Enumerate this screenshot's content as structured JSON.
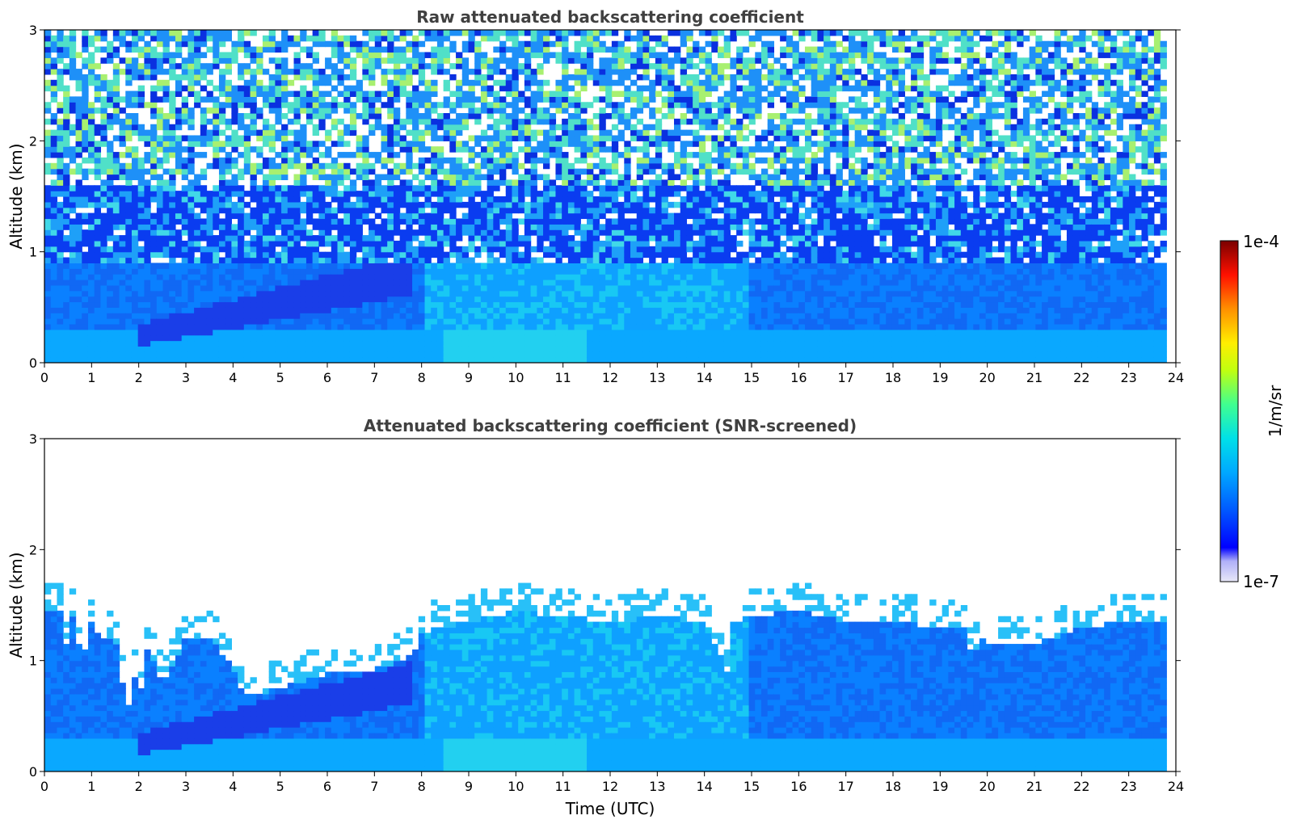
{
  "chart_data": [
    {
      "type": "heatmap",
      "title": "Raw attenuated backscattering coefficient",
      "xlabel": "",
      "ylabel": "Altitude (km)",
      "xlim": [
        0,
        24
      ],
      "ylim": [
        0,
        3
      ],
      "xticks": [
        "0",
        "1",
        "2",
        "3",
        "4",
        "5",
        "6",
        "7",
        "8",
        "9",
        "10",
        "11",
        "12",
        "13",
        "14",
        "15",
        "16",
        "17",
        "18",
        "19",
        "20",
        "21",
        "22",
        "23",
        "24"
      ],
      "yticks": [
        "0",
        "1",
        "2",
        "3"
      ],
      "data_end_hour": 23.8,
      "grid": false,
      "screened": false,
      "note_values": "Dense noisy backscatter throughout; strongest (cyan/light blue) below ~0.7 km, blue aerosol layer 0.3-0.8 km between 2h and 7h, noisy green/white above 1.5 km, brighter columns near 9-11h and 14.4h."
    },
    {
      "type": "heatmap",
      "title": "Attenuated backscattering coefficient (SNR-screened)",
      "xlabel": "Time (UTC)",
      "ylabel": "Altitude (km)",
      "xlim": [
        0,
        24
      ],
      "ylim": [
        0,
        3
      ],
      "xticks": [
        "0",
        "1",
        "2",
        "3",
        "4",
        "5",
        "6",
        "7",
        "8",
        "9",
        "10",
        "11",
        "12",
        "13",
        "14",
        "15",
        "16",
        "17",
        "18",
        "19",
        "20",
        "21",
        "22",
        "23",
        "24"
      ],
      "yticks": [
        "0",
        "1",
        "2",
        "3"
      ],
      "data_end_hour": 23.8,
      "grid": false,
      "screened": true,
      "boundary_layer_top_km": {
        "hours": [
          0,
          0.4,
          0.5,
          0.6,
          0.8,
          1.0,
          1.2,
          1.5,
          1.7,
          1.8,
          1.9,
          2.0,
          2.2,
          2.5,
          3.0,
          3.5,
          4.0,
          4.2,
          4.5,
          5.0,
          5.5,
          6.0,
          6.5,
          7.0,
          7.5,
          7.8,
          8.0,
          9.0,
          10.0,
          11.0,
          12.0,
          13.0,
          14.0,
          14.4,
          14.5,
          14.6,
          15.0,
          16.0,
          17.0,
          18.0,
          19.0,
          19.6,
          19.7,
          19.8,
          20.0,
          21.0,
          22.0,
          23.0,
          23.8
        ],
        "top_km": [
          1.45,
          1.45,
          0.95,
          1.4,
          1.0,
          1.35,
          1.2,
          1.2,
          0.65,
          0.6,
          0.9,
          0.65,
          1.15,
          0.8,
          1.2,
          1.2,
          0.95,
          0.7,
          0.68,
          0.75,
          0.82,
          0.88,
          0.9,
          0.92,
          0.98,
          1.05,
          1.25,
          1.35,
          1.45,
          1.4,
          1.35,
          1.4,
          1.35,
          1.0,
          0.85,
          1.35,
          1.4,
          1.45,
          1.35,
          1.35,
          1.3,
          1.3,
          0.75,
          1.25,
          1.15,
          1.15,
          1.3,
          1.35,
          1.35
        ]
      },
      "note_values": "Screened field: only boundary layer retained (cyan/blue), white above; isolated noise points above."
    }
  ],
  "colorbar": {
    "label": "1/m/sr",
    "max_label": "1e-4",
    "min_label": "1e-7",
    "scale": "log",
    "colormap": "jet",
    "colors": [
      "#ffffff",
      "#c8c8f0",
      "#9696ff",
      "#0000ff",
      "#0050ff",
      "#0090ff",
      "#00b4ff",
      "#00e0e0",
      "#40ff80",
      "#c0ff00",
      "#ffff00",
      "#ffb000",
      "#ff6000",
      "#ff0000",
      "#c00000",
      "#800000"
    ]
  }
}
